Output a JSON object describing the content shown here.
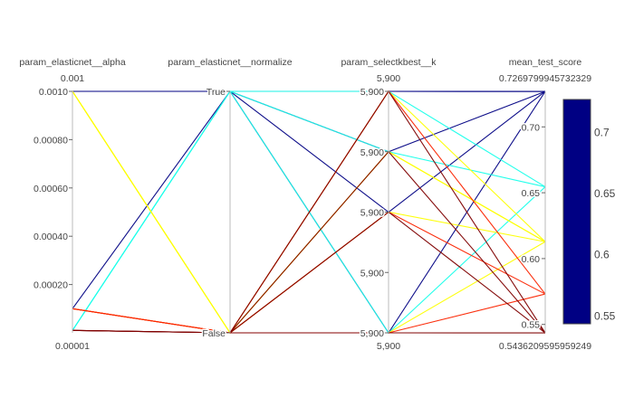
{
  "chart_data": {
    "type": "parallel_coordinates",
    "title": "",
    "dimensions": [
      {
        "label": "param_elasticnet__alpha",
        "range_top_label": "0.001",
        "range_bottom_label": "0.00001",
        "min": 0,
        "max": 0.001,
        "ticks": [
          "0.0010",
          "0.00080",
          "0.00060",
          "0.00040",
          "0.00020"
        ],
        "tick_values": [
          0.001,
          0.0008,
          0.0006,
          0.0004,
          0.0002
        ]
      },
      {
        "label": "param_elasticnet__normalize",
        "range_top_label": "",
        "range_bottom_label": "",
        "categories": [
          "False",
          "True"
        ],
        "ticks": [
          "True",
          "False"
        ]
      },
      {
        "label": "param_selectkbest__k",
        "range_top_label": "5,900",
        "range_bottom_label": "5,900",
        "ticks": [
          "5,900",
          "5,900",
          "5,900",
          "5,900",
          "5,900"
        ],
        "tick_fractions": [
          1,
          0.75,
          0.5,
          0.25,
          0
        ]
      },
      {
        "label": "mean_test_score",
        "range_top_label": "0.7269799945732329",
        "range_bottom_label": "0.5436209595959249",
        "min": 0.5436209595959249,
        "max": 0.7269799945732329,
        "ticks": [
          "0.70",
          "0.65",
          "0.60",
          "0.55"
        ],
        "tick_values": [
          0.7,
          0.65,
          0.6,
          0.55
        ]
      }
    ],
    "colorscale": "jet",
    "colorbar": {
      "min": 0.5436209595959249,
      "max": 0.7269799945732329,
      "ticks": [
        "0.7",
        "0.65",
        "0.6",
        "0.55"
      ],
      "tick_values": [
        0.7,
        0.65,
        0.6,
        0.55
      ]
    },
    "records": [
      {
        "alpha": 0.001,
        "normalize": "True",
        "k_frac": 1.0,
        "score": 0.7269
      },
      {
        "alpha": 0.001,
        "normalize": "True",
        "k_frac": 0.75,
        "score": 0.7269
      },
      {
        "alpha": 0.001,
        "normalize": "True",
        "k_frac": 0.5,
        "score": 0.7269
      },
      {
        "alpha": 0.001,
        "normalize": "True",
        "k_frac": 0.0,
        "score": 0.7269
      },
      {
        "alpha": 0.0001,
        "normalize": "True",
        "k_frac": 1.0,
        "score": 0.7269
      },
      {
        "alpha": 1e-05,
        "normalize": "True",
        "k_frac": 0.0,
        "score": 0.6545
      },
      {
        "alpha": 1e-05,
        "normalize": "True",
        "k_frac": 1.0,
        "score": 0.6545
      },
      {
        "alpha": 1e-05,
        "normalize": "True",
        "k_frac": 0.75,
        "score": 0.6545
      },
      {
        "alpha": 0.001,
        "normalize": "False",
        "k_frac": 1.0,
        "score": 0.6128
      },
      {
        "alpha": 0.001,
        "normalize": "False",
        "k_frac": 0.75,
        "score": 0.6128
      },
      {
        "alpha": 0.001,
        "normalize": "False",
        "k_frac": 0.5,
        "score": 0.6128
      },
      {
        "alpha": 0.001,
        "normalize": "False",
        "k_frac": 0.0,
        "score": 0.6128
      },
      {
        "alpha": 0.0001,
        "normalize": "False",
        "k_frac": 0.75,
        "score": 0.6128
      },
      {
        "alpha": 0.0001,
        "normalize": "False",
        "k_frac": 0.5,
        "score": 0.5731
      },
      {
        "alpha": 0.0001,
        "normalize": "False",
        "k_frac": 0.0,
        "score": 0.5731
      },
      {
        "alpha": 0.0001,
        "normalize": "False",
        "k_frac": 1.0,
        "score": 0.5731
      },
      {
        "alpha": 1e-05,
        "normalize": "False",
        "k_frac": 1.0,
        "score": 0.5436
      },
      {
        "alpha": 1e-05,
        "normalize": "False",
        "k_frac": 0.75,
        "score": 0.5436
      },
      {
        "alpha": 1e-05,
        "normalize": "False",
        "k_frac": 0.5,
        "score": 0.5436
      },
      {
        "alpha": 1e-05,
        "normalize": "False",
        "k_frac": 0.0,
        "score": 0.5436
      }
    ]
  }
}
